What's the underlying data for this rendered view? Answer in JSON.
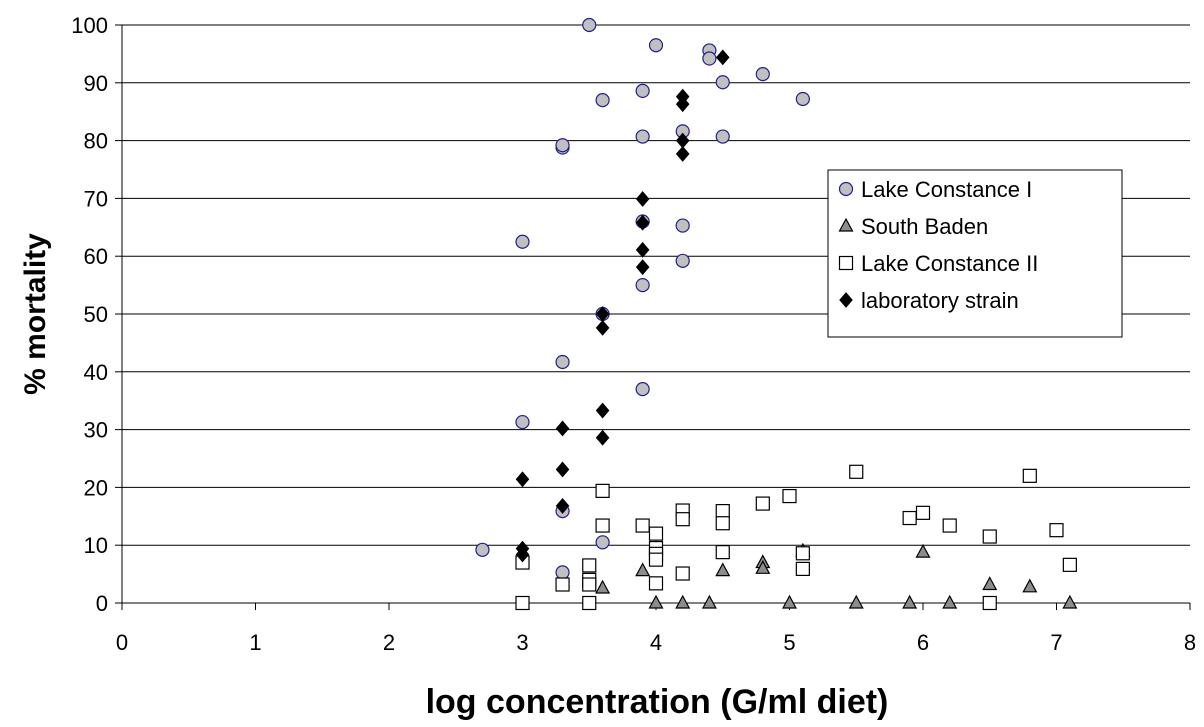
{
  "chart_data": {
    "type": "scatter",
    "title": "",
    "xlabel": "log concentration (G/ml diet)",
    "ylabel": "% mortality",
    "xlim": [
      0,
      8
    ],
    "ylim": [
      0,
      100
    ],
    "xticks": [
      0,
      1,
      2,
      3,
      4,
      5,
      6,
      7,
      8
    ],
    "yticks": [
      0,
      10,
      20,
      30,
      40,
      50,
      60,
      70,
      80,
      90,
      100
    ],
    "grid": "horizontal",
    "legend_position": "right",
    "series": [
      {
        "name": "Lake Constance I",
        "marker": "circle",
        "fill": "#c0c0c0",
        "stroke": "#1f1f8f",
        "points": [
          [
            2.7,
            9.2
          ],
          [
            3.0,
            31.3
          ],
          [
            3.0,
            62.5
          ],
          [
            3.3,
            78.8
          ],
          [
            3.3,
            79.2
          ],
          [
            3.3,
            41.7
          ],
          [
            3.3,
            15.9
          ],
          [
            3.3,
            5.3
          ],
          [
            3.5,
            100.0
          ],
          [
            3.6,
            87.0
          ],
          [
            3.6,
            50.0
          ],
          [
            3.6,
            10.5
          ],
          [
            3.9,
            88.6
          ],
          [
            3.9,
            80.7
          ],
          [
            3.9,
            66.0
          ],
          [
            3.9,
            55.0
          ],
          [
            3.9,
            37.0
          ],
          [
            4.0,
            96.5
          ],
          [
            4.2,
            81.6
          ],
          [
            4.2,
            65.3
          ],
          [
            4.2,
            59.2
          ],
          [
            4.4,
            95.6
          ],
          [
            4.4,
            94.2
          ],
          [
            4.5,
            90.1
          ],
          [
            4.5,
            80.7
          ],
          [
            4.8,
            91.5
          ],
          [
            5.1,
            87.2
          ]
        ]
      },
      {
        "name": "South Baden",
        "marker": "triangle",
        "fill": "#8c8c8c",
        "stroke": "#000000",
        "points": [
          [
            3.6,
            2.6
          ],
          [
            3.9,
            5.6
          ],
          [
            4.0,
            0.0
          ],
          [
            4.2,
            0.0
          ],
          [
            4.4,
            0.0
          ],
          [
            4.5,
            5.6
          ],
          [
            4.8,
            7.0
          ],
          [
            4.8,
            6.0
          ],
          [
            5.0,
            0.0
          ],
          [
            5.1,
            9.0
          ],
          [
            5.5,
            0.0
          ],
          [
            5.9,
            0.0
          ],
          [
            6.0,
            8.8
          ],
          [
            6.2,
            0.0
          ],
          [
            6.5,
            3.2
          ],
          [
            6.8,
            2.8
          ],
          [
            7.1,
            0.0
          ]
        ]
      },
      {
        "name": "Lake Constance II",
        "marker": "square",
        "fill": "#ffffff",
        "stroke": "#000000",
        "points": [
          [
            3.0,
            7.0
          ],
          [
            3.0,
            0.0
          ],
          [
            3.3,
            3.2
          ],
          [
            3.5,
            6.5
          ],
          [
            3.5,
            4.0
          ],
          [
            3.5,
            3.2
          ],
          [
            3.5,
            0.0
          ],
          [
            3.6,
            19.4
          ],
          [
            3.6,
            13.4
          ],
          [
            3.9,
            13.4
          ],
          [
            4.0,
            12.0
          ],
          [
            4.0,
            9.5
          ],
          [
            4.0,
            8.5
          ],
          [
            4.0,
            7.5
          ],
          [
            4.0,
            3.4
          ],
          [
            4.2,
            16.0
          ],
          [
            4.2,
            14.5
          ],
          [
            4.2,
            5.1
          ],
          [
            4.5,
            15.9
          ],
          [
            4.5,
            13.8
          ],
          [
            4.5,
            8.8
          ],
          [
            4.8,
            17.2
          ],
          [
            5.0,
            18.5
          ],
          [
            5.1,
            8.6
          ],
          [
            5.1,
            5.9
          ],
          [
            5.5,
            22.7
          ],
          [
            5.9,
            14.7
          ],
          [
            6.0,
            15.6
          ],
          [
            6.2,
            13.4
          ],
          [
            6.5,
            11.5
          ],
          [
            6.5,
            0.0
          ],
          [
            6.8,
            22.0
          ],
          [
            7.0,
            12.6
          ],
          [
            7.1,
            6.6
          ]
        ]
      },
      {
        "name": "laboratory strain",
        "marker": "diamond",
        "fill": "#000000",
        "stroke": "#000000",
        "points": [
          [
            3.0,
            21.4
          ],
          [
            3.0,
            9.4
          ],
          [
            3.0,
            8.4
          ],
          [
            3.3,
            30.2
          ],
          [
            3.3,
            23.1
          ],
          [
            3.3,
            16.8
          ],
          [
            3.6,
            50.0
          ],
          [
            3.6,
            47.6
          ],
          [
            3.6,
            33.3
          ],
          [
            3.6,
            28.6
          ],
          [
            3.9,
            69.9
          ],
          [
            3.9,
            65.8
          ],
          [
            3.9,
            61.1
          ],
          [
            3.9,
            58.1
          ],
          [
            4.2,
            87.6
          ],
          [
            4.2,
            86.3
          ],
          [
            4.2,
            80.0
          ],
          [
            4.2,
            77.7
          ],
          [
            4.5,
            94.4
          ]
        ]
      }
    ]
  }
}
